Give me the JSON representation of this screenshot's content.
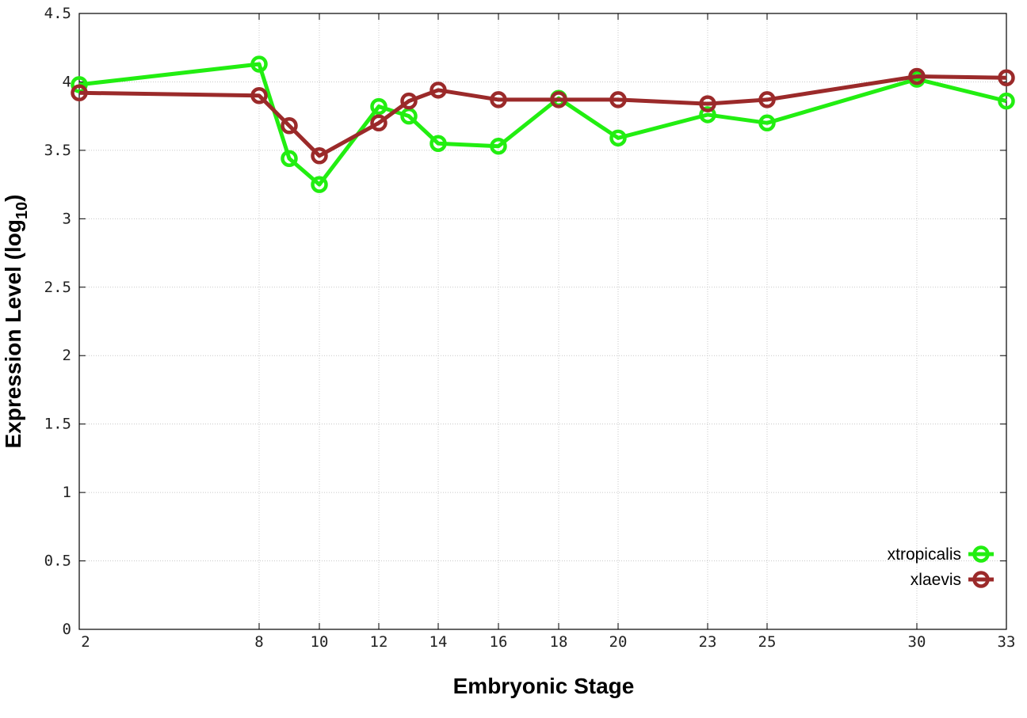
{
  "chart_data": {
    "type": "line",
    "xlabel": "Embryonic Stage",
    "ylabel_main": "Expression Level (log",
    "ylabel_sub": "10",
    "ylabel_close": ")",
    "x_ticks": [
      "2",
      "8",
      "10",
      "12",
      "14",
      "16",
      "18",
      "20",
      "23",
      "25",
      "30",
      "33"
    ],
    "y_ticks": [
      "0",
      "0.5",
      "1",
      "1.5",
      "2",
      "2.5",
      "3",
      "3.5",
      "4",
      "4.5"
    ],
    "ylim": [
      0,
      4.5
    ],
    "grid": true,
    "legend_position": "bottom-right",
    "series": [
      {
        "name": "xtropicalis",
        "color": "#22ee11",
        "points": [
          {
            "x": "2",
            "y": 3.98
          },
          {
            "x": "8",
            "y": 4.13
          },
          {
            "x": "9",
            "y": 3.44
          },
          {
            "x": "10",
            "y": 3.25
          },
          {
            "x": "12",
            "y": 3.82
          },
          {
            "x": "13",
            "y": 3.75
          },
          {
            "x": "14",
            "y": 3.55
          },
          {
            "x": "16",
            "y": 3.53
          },
          {
            "x": "18",
            "y": 3.88
          },
          {
            "x": "20",
            "y": 3.59
          },
          {
            "x": "23",
            "y": 3.76
          },
          {
            "x": "25",
            "y": 3.7
          },
          {
            "x": "30",
            "y": 4.02
          },
          {
            "x": "33",
            "y": 3.86
          }
        ]
      },
      {
        "name": "xlaevis",
        "color": "#9b2a2a",
        "points": [
          {
            "x": "2",
            "y": 3.92
          },
          {
            "x": "8",
            "y": 3.9
          },
          {
            "x": "9",
            "y": 3.68
          },
          {
            "x": "10",
            "y": 3.46
          },
          {
            "x": "12",
            "y": 3.7
          },
          {
            "x": "13",
            "y": 3.86
          },
          {
            "x": "14",
            "y": 3.94
          },
          {
            "x": "16",
            "y": 3.87
          },
          {
            "x": "18",
            "y": 3.87
          },
          {
            "x": "20",
            "y": 3.87
          },
          {
            "x": "23",
            "y": 3.84
          },
          {
            "x": "25",
            "y": 3.87
          },
          {
            "x": "30",
            "y": 4.04
          },
          {
            "x": "33",
            "y": 4.03
          }
        ]
      }
    ]
  }
}
